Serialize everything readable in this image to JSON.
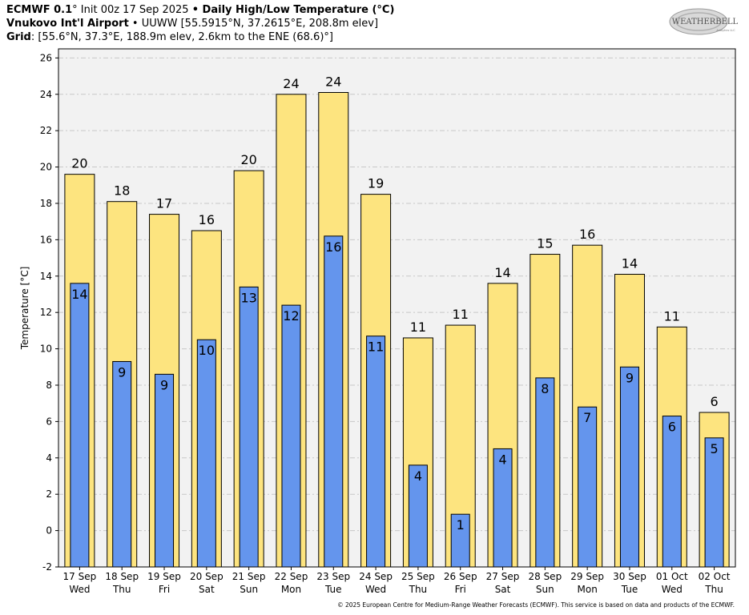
{
  "header": {
    "line1_model": "ECMWF 0.1",
    "line1_deg": "°",
    "line1_init": " Init 00z 17 Sep 2025 ",
    "line1_bullet": "•",
    "line1_title": " Daily High/Low Temperature (°C)",
    "line2_station": "Vnukovo Int'l Airport",
    "line2_bullet": " • ",
    "line2_info": "UUWW [55.5915°N, 37.2615°E, 208.8m elev]",
    "line3_label": "Grid",
    "line3_info": ": [55.6°N, 37.3°E, 188.9m elev, 2.6km to the ENE (68.6)°]"
  },
  "logo": {
    "text": "WEATHERBELL",
    "sub": "Analytics LLC"
  },
  "footer": "© 2025 European Centre for Medium-Range Weather Forecasts (ECMWF). This service is based on data and products of the ECMWF.",
  "colors": {
    "high": "#fde47f",
    "low": "#6495ed",
    "plot_bg": "#f2f2f2",
    "grid": "#c8c8c8"
  },
  "chart_data": {
    "type": "bar",
    "ylabel": "Temperature [°C]",
    "ylim": [
      -2,
      26.5
    ],
    "yticks": [
      -2,
      0,
      2,
      4,
      6,
      8,
      10,
      12,
      14,
      16,
      18,
      20,
      22,
      24,
      26
    ],
    "grid": true,
    "categories": [
      {
        "date": "17 Sep",
        "day": "Wed"
      },
      {
        "date": "18 Sep",
        "day": "Thu"
      },
      {
        "date": "19 Sep",
        "day": "Fri"
      },
      {
        "date": "20 Sep",
        "day": "Sat"
      },
      {
        "date": "21 Sep",
        "day": "Sun"
      },
      {
        "date": "22 Sep",
        "day": "Mon"
      },
      {
        "date": "23 Sep",
        "day": "Tue"
      },
      {
        "date": "24 Sep",
        "day": "Wed"
      },
      {
        "date": "25 Sep",
        "day": "Thu"
      },
      {
        "date": "26 Sep",
        "day": "Fri"
      },
      {
        "date": "27 Sep",
        "day": "Sat"
      },
      {
        "date": "28 Sep",
        "day": "Sun"
      },
      {
        "date": "29 Sep",
        "day": "Mon"
      },
      {
        "date": "30 Sep",
        "day": "Tue"
      },
      {
        "date": "01 Oct",
        "day": "Wed"
      },
      {
        "date": "02 Oct",
        "day": "Thu"
      }
    ],
    "series": [
      {
        "values": [
          19.6,
          18.1,
          17.4,
          16.5,
          19.8,
          24.0,
          24.1,
          18.5,
          10.6,
          11.3,
          13.6,
          15.2,
          15.7,
          14.1,
          11.2,
          6.5
        ],
        "labels": [
          "20",
          "18",
          "17",
          "16",
          "20",
          "24",
          "24",
          "19",
          "11",
          "11",
          "14",
          "15",
          "16",
          "14",
          "11",
          "6"
        ]
      },
      {
        "values": [
          13.6,
          9.3,
          8.6,
          10.5,
          13.4,
          12.4,
          16.2,
          10.7,
          3.6,
          0.9,
          4.5,
          8.4,
          6.8,
          9.0,
          6.3,
          5.1
        ],
        "labels": [
          "14",
          "9",
          "9",
          "10",
          "13",
          "12",
          "16",
          "11",
          "4",
          "1",
          "4",
          "8",
          "7",
          "9",
          "6",
          "5"
        ]
      }
    ]
  }
}
